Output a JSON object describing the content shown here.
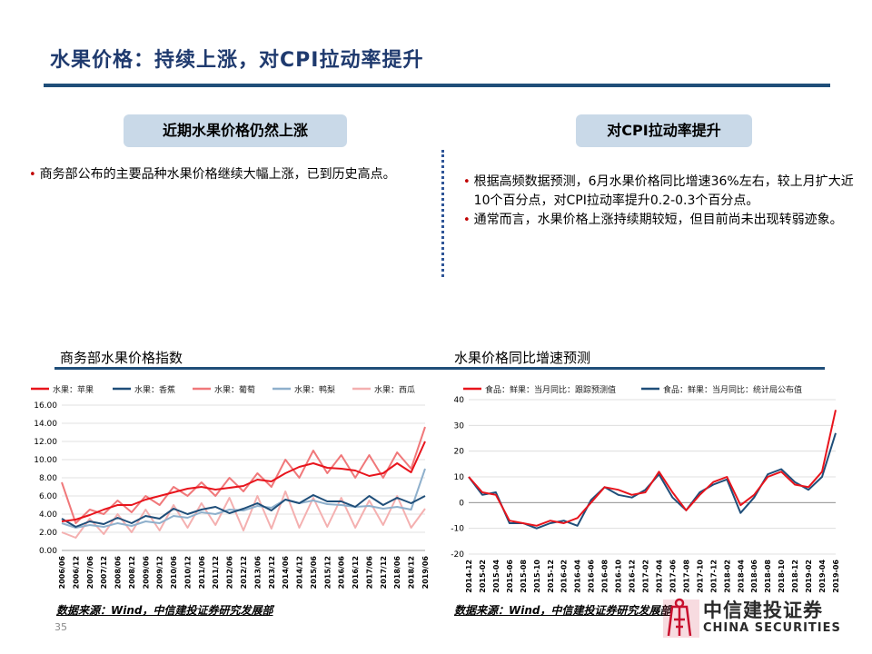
{
  "title": "水果价格：持续上涨，对CPI拉动率提升",
  "left_section": {
    "heading": "近期水果价格仍然上涨",
    "bullets": [
      "商务部公布的主要品种水果价格继续大幅上涨，已到历史高点。"
    ]
  },
  "right_section": {
    "heading": "对CPI拉动率提升",
    "bullets": [
      "根据高频数据预测，6月水果价格同比增速36%左右，较上月扩大近10个百分点，对CPI拉动率提升0.2-0.3个百分点。",
      "通常而言，水果价格上涨持续期较短，但目前尚未出现转弱迹象。"
    ]
  },
  "chart_left_label": "商务部水果价格指数",
  "chart_right_label": "水果价格同比增速预测",
  "source_left": "数据来源：Wind，中信建投证券研究发展部",
  "source_right": "数据来源：Wind，中信建投证券研究发展部",
  "page_number": "35",
  "logo": {
    "cn": "中信建投证券",
    "en": "CHINA SECURITIES"
  },
  "colors": {
    "title": "#1f3a6e",
    "rule": "#1f4e79",
    "pill": "#c9d9e8",
    "bullet": "#c00000"
  },
  "chart_data": [
    {
      "type": "line",
      "xlabel": "",
      "ylabel": "",
      "ylim": [
        0,
        16
      ],
      "yticks": [
        "0.00",
        "2.00",
        "4.00",
        "6.00",
        "8.00",
        "10.00",
        "12.00",
        "14.00",
        "16.00"
      ],
      "x": [
        "2006/06",
        "2006/12",
        "2007/06",
        "2007/12",
        "2008/06",
        "2008/12",
        "2009/06",
        "2009/12",
        "2010/06",
        "2010/12",
        "2011/06",
        "2011/12",
        "2012/06",
        "2012/12",
        "2013/06",
        "2013/12",
        "2014/06",
        "2014/12",
        "2015/06",
        "2015/12",
        "2016/06",
        "2016/12",
        "2017/06",
        "2017/12",
        "2018/06",
        "2018/12",
        "2019/06"
      ],
      "legend": "top",
      "grid": true,
      "series": [
        {
          "name": "水果：苹果",
          "color": "#e8141c",
          "values": [
            3.2,
            3.4,
            3.9,
            4.5,
            5.0,
            5.0,
            5.6,
            6.0,
            6.4,
            6.8,
            7.0,
            6.7,
            6.9,
            7.1,
            7.8,
            7.6,
            8.5,
            9.2,
            9.6,
            9.1,
            9.0,
            8.8,
            8.2,
            8.5,
            9.6,
            8.6,
            12.0
          ]
        },
        {
          "name": "水果：香蕉",
          "color": "#1f4e79",
          "values": [
            3.5,
            2.6,
            3.2,
            2.9,
            3.6,
            3.0,
            3.8,
            3.5,
            4.6,
            4.0,
            4.5,
            4.8,
            4.1,
            4.6,
            5.2,
            4.4,
            5.6,
            5.2,
            6.1,
            5.4,
            5.4,
            4.8,
            6.0,
            5.0,
            5.8,
            5.2,
            6.0
          ]
        },
        {
          "name": "水果：葡萄",
          "color": "#f0787a",
          "values": [
            7.5,
            3.0,
            4.5,
            4.0,
            5.5,
            4.2,
            6.0,
            5.0,
            7.0,
            6.0,
            7.5,
            6.0,
            8.0,
            6.5,
            8.5,
            7.0,
            10.0,
            8.0,
            11.0,
            8.5,
            10.5,
            8.0,
            10.5,
            8.0,
            10.8,
            9.0,
            13.6
          ]
        },
        {
          "name": "水果：鸭梨",
          "color": "#8fb0cc",
          "values": [
            3.0,
            2.5,
            2.8,
            2.6,
            3.0,
            2.7,
            3.2,
            3.0,
            3.8,
            3.6,
            4.2,
            4.0,
            4.5,
            4.4,
            4.9,
            4.7,
            5.6,
            5.2,
            5.5,
            5.1,
            5.0,
            4.8,
            4.9,
            4.6,
            4.8,
            4.5,
            9.0
          ]
        },
        {
          "name": "水果：西瓜",
          "color": "#f4b0b0",
          "values": [
            2.0,
            1.4,
            3.5,
            1.8,
            4.0,
            2.0,
            4.5,
            2.2,
            5.0,
            2.5,
            5.2,
            2.8,
            5.8,
            2.2,
            6.0,
            2.4,
            6.5,
            2.5,
            5.8,
            2.6,
            5.8,
            2.5,
            5.5,
            2.8,
            6.0,
            2.5,
            4.6
          ]
        }
      ]
    },
    {
      "type": "line",
      "xlabel": "",
      "ylabel": "",
      "ylim": [
        -20,
        40
      ],
      "yticks": [
        "-20",
        "-10",
        "0",
        "10",
        "20",
        "30",
        "40"
      ],
      "x": [
        "2014-12",
        "2015-02",
        "2015-04",
        "2015-06",
        "2015-08",
        "2015-10",
        "2015-12",
        "2016-02",
        "2016-04",
        "2016-06",
        "2016-08",
        "2016-10",
        "2016-12",
        "2017-02",
        "2017-04",
        "2017-06",
        "2017-08",
        "2017-10",
        "2017-12",
        "2018-02",
        "2018-04",
        "2018-06",
        "2018-08",
        "2018-10",
        "2018-12",
        "2019-02",
        "2019-04",
        "2019-06"
      ],
      "legend": "top",
      "grid": true,
      "series": [
        {
          "name": "食品：鲜果：当月同比：跟踪预测值",
          "color": "#e8141c",
          "values": [
            10,
            4,
            3,
            -7,
            -8,
            -9,
            -7,
            -8,
            -6,
            0,
            6,
            5,
            3,
            4,
            12,
            4,
            -3,
            3,
            8,
            10,
            -1,
            3,
            10,
            12,
            7,
            6,
            12,
            36
          ]
        },
        {
          "name": "食品：鲜果：当月同比：统计局公布值",
          "color": "#1f4e79",
          "values": [
            10,
            3,
            4,
            -8,
            -8,
            -10,
            -8,
            -7,
            -9,
            1,
            6,
            3,
            2,
            5,
            11,
            2,
            -3,
            4,
            7,
            9,
            -4,
            2,
            11,
            13,
            8,
            5,
            10,
            27
          ]
        }
      ]
    }
  ]
}
